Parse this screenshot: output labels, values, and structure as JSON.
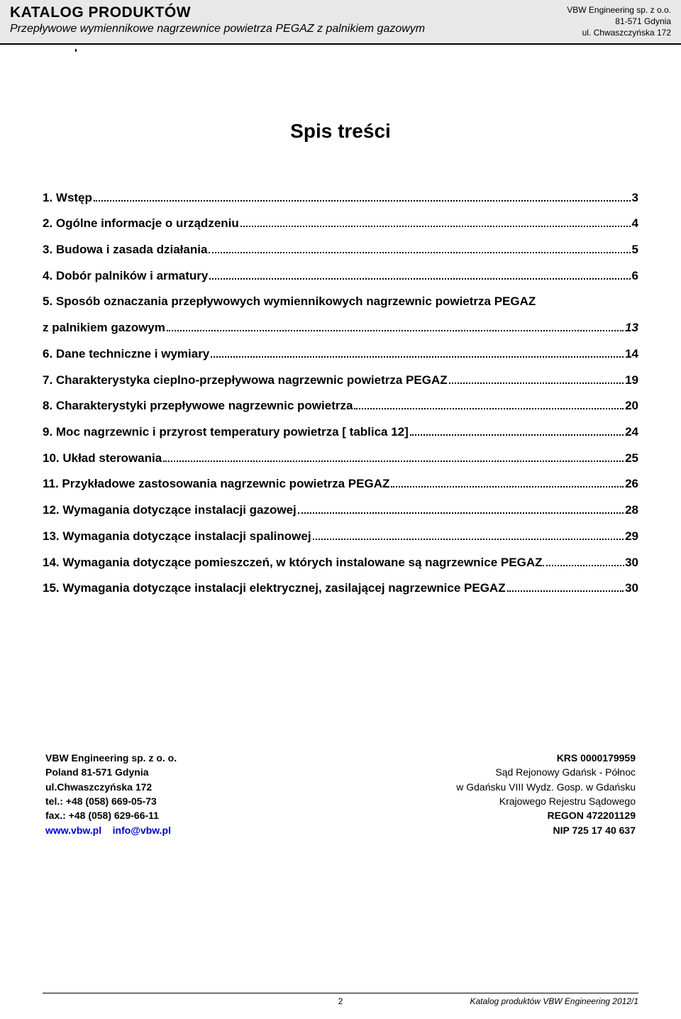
{
  "header": {
    "title": "KATALOG PRODUKTÓW",
    "subtitle": "Przepływowe wymiennikowe nagrzewnice powietrza PEGAZ z palnikiem gazowym",
    "company": "VBW Engineering sp. z o.o.",
    "city": "81-571 Gdynia",
    "street": "ul. Chwaszczyńska 172"
  },
  "stray_mark": "'",
  "toc_title": "Spis treści",
  "toc": [
    {
      "n": "1.",
      "label": "Wstęp",
      "page": "3"
    },
    {
      "n": "2.",
      "label": "Ogólne informacje o urządzeniu",
      "page": "4"
    },
    {
      "n": "3.",
      "label": "Budowa i zasada działania",
      "page": "5"
    },
    {
      "n": "4.",
      "label": "Dobór palników i armatury",
      "page": "6"
    },
    {
      "n": "5.",
      "label_line1": "Sposób oznaczania przepływowych wymiennikowych nagrzewnic powietrza PEGAZ",
      "label_line2": "z palnikiem gazowym",
      "page": "13",
      "italic_page": true
    },
    {
      "n": "6.",
      "label": "Dane techniczne i wymiary",
      "page": "14"
    },
    {
      "n": "7.",
      "label": "Charakterystyka cieplno-przepływowa nagrzewnic powietrza PEGAZ",
      "page": "19"
    },
    {
      "n": "8.",
      "label": "Charakterystyki przepływowe nagrzewnic powietrza",
      "page": "20"
    },
    {
      "n": "9.",
      "label": "Moc nagrzewnic i przyrost temperatury powietrza [ tablica 12]",
      "page": "24"
    },
    {
      "n": "10.",
      "label": "Układ sterowania",
      "page": "25"
    },
    {
      "n": "11.",
      "label": "Przykładowe zastosowania nagrzewnic powietrza PEGAZ",
      "page": "26"
    },
    {
      "n": "12.",
      "label": "Wymagania dotyczące instalacji gazowej",
      "page": "28"
    },
    {
      "n": "13.",
      "label": "Wymagania dotyczące instalacji spalinowej",
      "page": "29"
    },
    {
      "n": "14.",
      "label": "Wymagania dotyczące pomieszczeń, w których instalowane są nagrzewnice PEGAZ",
      "page": "30",
      "tight": true
    },
    {
      "n": "15.",
      "label": "Wymagania dotyczące instalacji elektrycznej, zasilającej nagrzewnice PEGAZ",
      "page": "30"
    }
  ],
  "company_block": {
    "name": "VBW Engineering sp. z o. o.",
    "addr1": "Poland 81-571 Gdynia",
    "addr2": "ul.Chwaszczyńska 172",
    "tel": "tel.: +48 (058) 669-05-73",
    "fax": "fax.: +48 (058) 629-66-11",
    "web": "www.vbw.pl",
    "email": "info@vbw.pl"
  },
  "legal_block": {
    "krs": "KRS 0000179959",
    "court1": "Sąd Rejonowy Gdańsk - Północ",
    "court2": "w Gdańsku VIII Wydz. Gosp. w Gdańsku",
    "court3": "Krajowego Rejestru Sądowego",
    "regon": "REGON 472201129",
    "nip": "NIP 725 17 40 637"
  },
  "footer": {
    "page_number": "2",
    "right": "Katalog produktów VBW Engineering 2012/1"
  }
}
